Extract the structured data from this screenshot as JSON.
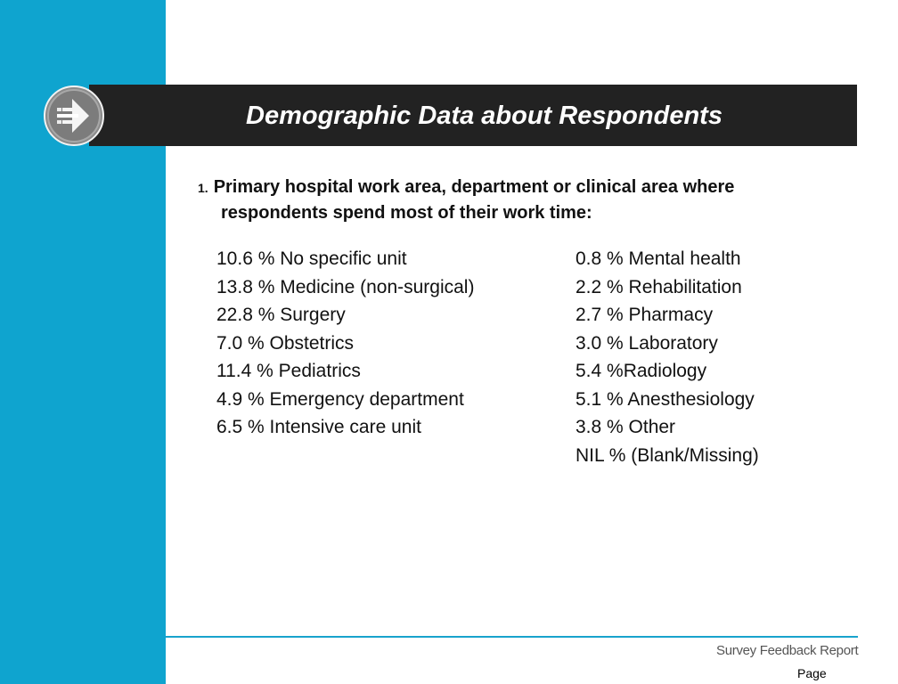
{
  "slide": {
    "title": "Demographic Data about Respondents",
    "question": {
      "number": "1.",
      "line1": "Primary hospital work area, department or clinical area where",
      "line2": "respondents spend most of their work time:"
    },
    "left_items": [
      "10.6 % No specific unit",
      "13.8 % Medicine (non-surgical)",
      "22.8 % Surgery",
      "7.0 % Obstetrics",
      "11.4 % Pediatrics",
      "4.9 % Emergency department",
      "6.5 % Intensive care unit"
    ],
    "right_items": [
      "0.8 % Mental health",
      "2.2 % Rehabilitation",
      "2.7 % Pharmacy",
      "3.0 % Laboratory",
      "5.4 %Radiology",
      "5.1 % Anesthesiology",
      "3.8 % Other",
      "NIL % (Blank/Missing)"
    ],
    "footer_logo": "Survey Feedback Report",
    "page_label": "Page"
  },
  "colors": {
    "accent_blue": "#0fa4cf",
    "title_bar": "#222222"
  },
  "icons": {
    "title_badge": "arrow-right-icon"
  }
}
